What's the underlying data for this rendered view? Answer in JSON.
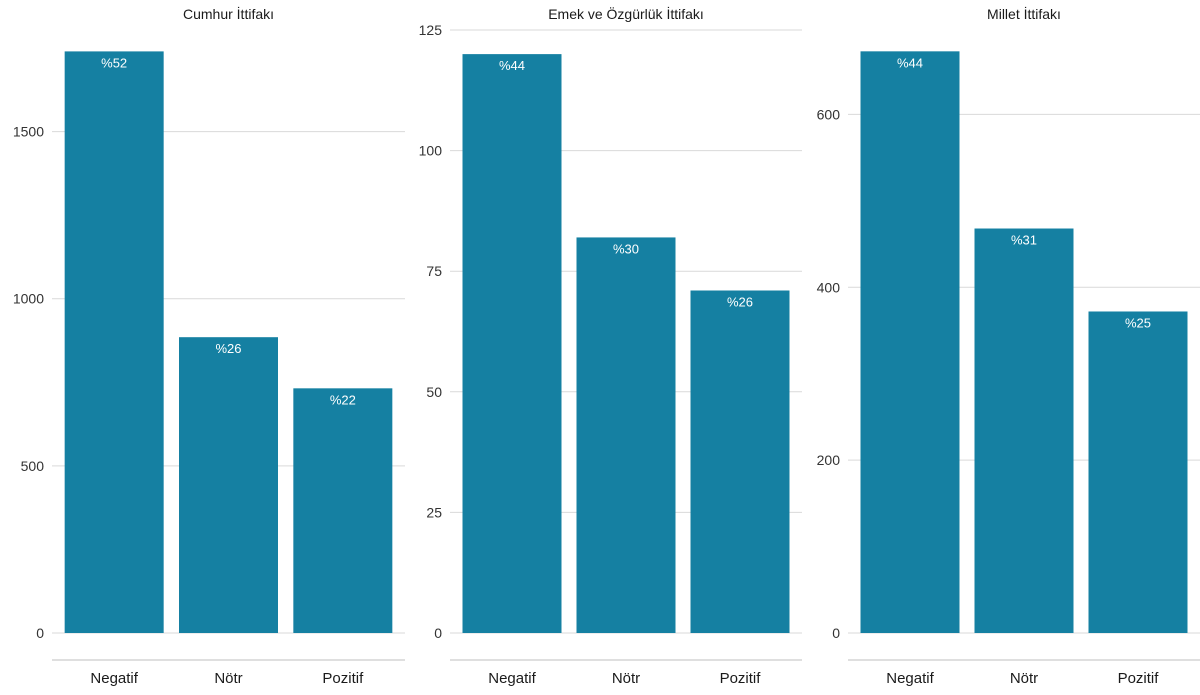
{
  "chart_data": [
    {
      "type": "bar",
      "title": "Cumhur İttifakı",
      "categories": [
        "Negatif",
        "Nötr",
        "Pozitif"
      ],
      "values": [
        1740,
        885,
        732
      ],
      "labels": [
        "%52",
        "%26",
        "%22"
      ],
      "yticks": [
        0,
        500,
        1000,
        1500
      ],
      "ytick_labels": [
        "0",
        "500",
        "1000",
        "1500"
      ],
      "ylim": [
        0,
        1810
      ],
      "grid": true,
      "bar_color": "#1580a2"
    },
    {
      "type": "bar",
      "title": "Emek ve Özgürlük İttifakı",
      "categories": [
        "Negatif",
        "Nötr",
        "Pozitif"
      ],
      "values": [
        120,
        82,
        71
      ],
      "labels": [
        "%44",
        "%30",
        "%26"
      ],
      "yticks": [
        0,
        25,
        50,
        75,
        100,
        125
      ],
      "ytick_labels": [
        "0",
        "25",
        "50",
        "75",
        "100",
        "125"
      ],
      "ylim": [
        0,
        125
      ],
      "grid": true,
      "bar_color": "#1580a2"
    },
    {
      "type": "bar",
      "title": "Millet İttifakı",
      "categories": [
        "Negatif",
        "Nötr",
        "Pozitif"
      ],
      "values": [
        673,
        468,
        372
      ],
      "labels": [
        "%44",
        "%31",
        "%25"
      ],
      "yticks": [
        0,
        200,
        400,
        600
      ],
      "ytick_labels": [
        "0",
        "200",
        "400",
        "600"
      ],
      "ylim": [
        0,
        700
      ],
      "grid": true,
      "bar_color": "#1580a2"
    }
  ]
}
